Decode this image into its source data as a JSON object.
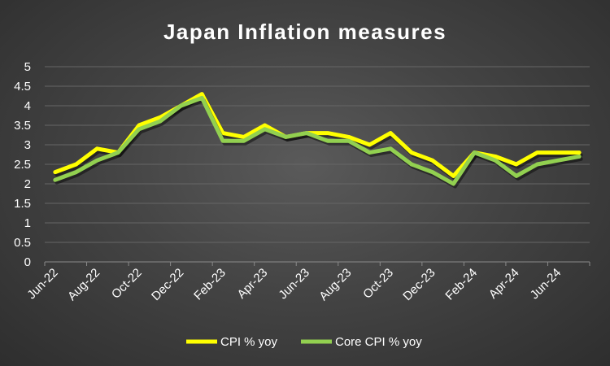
{
  "chart_data": {
    "type": "line",
    "title": "Japan Inflation measures",
    "xlabel": "",
    "ylabel": "",
    "ylim": [
      0,
      5
    ],
    "yticks": [
      "0",
      "0.5",
      "1",
      "1.5",
      "2",
      "2.5",
      "3",
      "3.5",
      "4",
      "4.5",
      "5"
    ],
    "grid": true,
    "legend_position": "bottom",
    "x": [
      "Jun-22",
      "Jul-22",
      "Aug-22",
      "Sep-22",
      "Oct-22",
      "Nov-22",
      "Dec-22",
      "Jan-23",
      "Feb-23",
      "Mar-23",
      "Apr-23",
      "May-23",
      "Jun-23",
      "Jul-23",
      "Aug-23",
      "Sep-23",
      "Oct-23",
      "Nov-23",
      "Dec-23",
      "Jan-24",
      "Feb-24",
      "Mar-24",
      "Apr-24",
      "May-24",
      "Jun-24",
      "Jul-24"
    ],
    "xtick_labels": [
      "Jun-22",
      "Aug-22",
      "Oct-22",
      "Dec-22",
      "Feb-23",
      "Apr-23",
      "Jun-23",
      "Aug-23",
      "Oct-23",
      "Dec-23",
      "Feb-24",
      "Apr-24",
      "Jun-24"
    ],
    "series": [
      {
        "name": "CPI % yoy",
        "color": "#ffff00",
        "values": [
          2.3,
          2.5,
          2.9,
          2.8,
          3.5,
          3.7,
          4.0,
          4.3,
          3.3,
          3.2,
          3.5,
          3.2,
          3.3,
          3.3,
          3.2,
          3.0,
          3.3,
          2.8,
          2.6,
          2.2,
          2.8,
          2.7,
          2.5,
          2.8,
          2.8,
          2.8
        ]
      },
      {
        "name": "Core CPI % yoy",
        "color": "#92d050",
        "values": [
          2.1,
          2.3,
          2.6,
          2.8,
          3.4,
          3.6,
          4.0,
          4.2,
          3.1,
          3.1,
          3.4,
          3.2,
          3.3,
          3.1,
          3.1,
          2.8,
          2.9,
          2.5,
          2.3,
          2.0,
          2.8,
          2.6,
          2.2,
          2.5,
          2.6,
          2.7
        ]
      }
    ]
  }
}
